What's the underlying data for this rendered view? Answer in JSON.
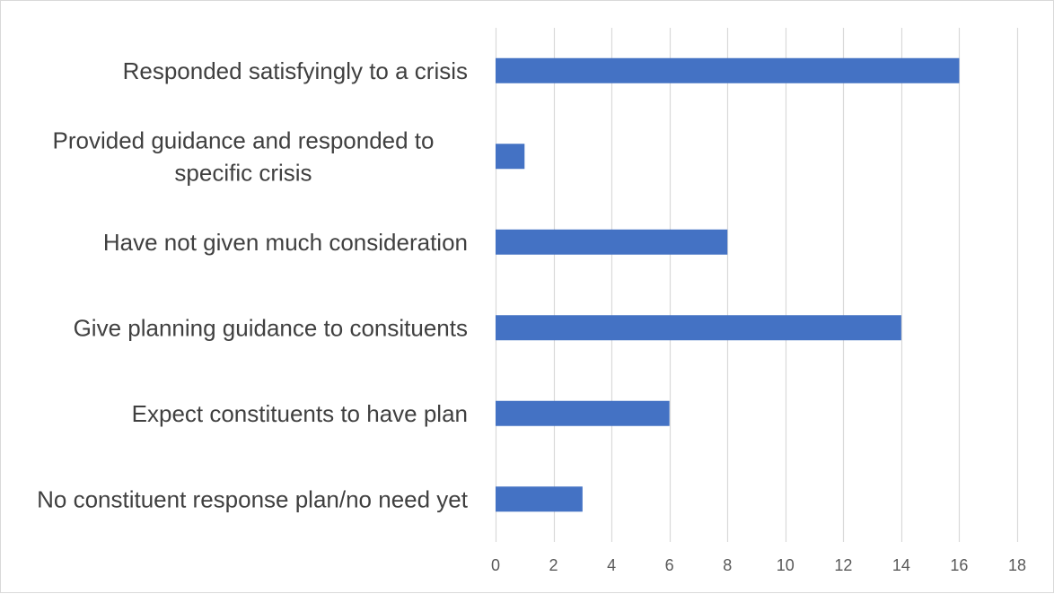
{
  "chart_data": {
    "type": "bar",
    "orientation": "horizontal",
    "categories": [
      "Responded satisfyingly to a crisis",
      "Provided guidance and responded to specific crisis",
      "Have not given much consideration",
      "Give planning guidance to consituents",
      "Expect constituents to have plan",
      "No constituent response plan/no need yet"
    ],
    "values": [
      16,
      1,
      8,
      14,
      6,
      3
    ],
    "xlim": [
      0,
      18
    ],
    "xticks": [
      0,
      2,
      4,
      6,
      8,
      10,
      12,
      14,
      16,
      18
    ],
    "grid": true,
    "legend": "none",
    "title": "",
    "xlabel": "",
    "ylabel": "",
    "bar_color": "#4472c4",
    "grid_color": "#d9d9d9",
    "label_color": "#404040"
  }
}
